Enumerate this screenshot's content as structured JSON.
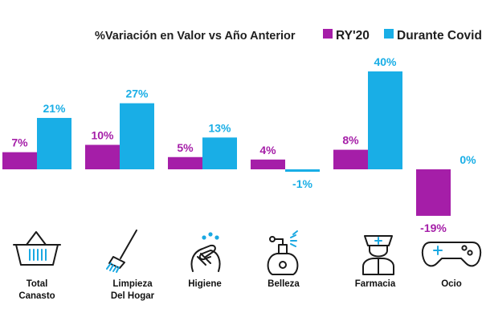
{
  "chart_data": {
    "type": "bar",
    "title": "%Variación en Valor vs Año Anterior",
    "categories": [
      "Total Canasto",
      "Limpieza Del Hogar",
      "Higiene",
      "Belleza",
      "Farmacia",
      "Ocio"
    ],
    "category_lines": [
      [
        "Total",
        "Canasto"
      ],
      [
        "Limpieza",
        "Del Hogar"
      ],
      [
        "Higiene"
      ],
      [
        "Belleza"
      ],
      [
        "Farmacia"
      ],
      [
        "Ocio"
      ]
    ],
    "category_icons": [
      "basket-icon",
      "broom-icon",
      "washing-hands-icon",
      "perfume-bottle-icon",
      "pharmacist-icon",
      "gamepad-icon"
    ],
    "series": [
      {
        "name": "RY'20",
        "color": "#a51ea8",
        "values": [
          7,
          10,
          5,
          4,
          8,
          -19
        ],
        "labels": [
          "7%",
          "10%",
          "5%",
          "4%",
          "8%",
          "-19%"
        ]
      },
      {
        "name": "Durante Covid",
        "color": "#19aee6",
        "values": [
          21,
          27,
          13,
          -1,
          40,
          0
        ],
        "labels": [
          "21%",
          "27%",
          "13%",
          "-1%",
          "40%",
          "0%"
        ]
      }
    ],
    "ylim": [
      -20,
      40
    ],
    "legend": "top-right",
    "grid": false,
    "xlabel": "",
    "ylabel": ""
  }
}
